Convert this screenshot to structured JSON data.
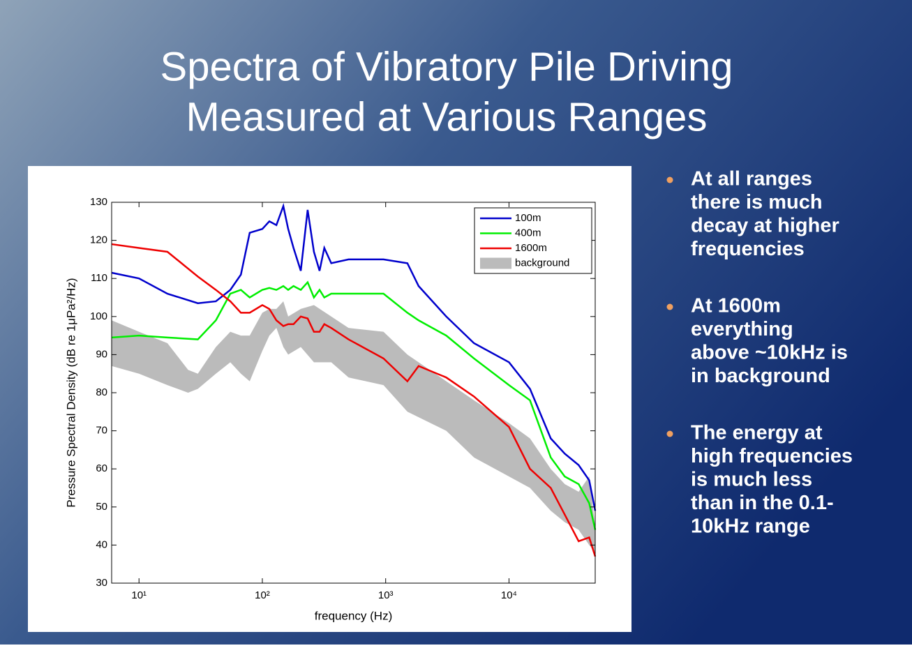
{
  "slide_title": [
    "Spectra of Vibratory Pile Driving",
    "Measured at Various Ranges"
  ],
  "bullets": [
    [
      "At all ranges",
      "there is much",
      "decay at higher",
      "frequencies"
    ],
    [
      "At 1600m",
      "everything",
      "above ~10kHz is",
      "in background"
    ],
    [
      "The energy at",
      "high frequencies",
      "is much less",
      "than in the 0.1-",
      "10kHz range"
    ]
  ],
  "chart_data": {
    "type": "line",
    "xlabel": "frequency (Hz)",
    "ylabel": "Pressure Spectral Density (dB re 1μPa²/Hz)",
    "log_x": true,
    "xlim": [
      6,
      50000
    ],
    "ylim": [
      30,
      130
    ],
    "xticks": [
      {
        "value": 10,
        "label": "10¹"
      },
      {
        "value": 100,
        "label": "10²"
      },
      {
        "value": 1000,
        "label": "10³"
      },
      {
        "value": 10000,
        "label": "10⁴"
      }
    ],
    "yticks": [
      30,
      40,
      50,
      60,
      70,
      80,
      90,
      100,
      110,
      120,
      130
    ],
    "legend": "upper right",
    "x": [
      6,
      10,
      17,
      30,
      42,
      55,
      67,
      79,
      100,
      114,
      130,
      148,
      162,
      179,
      205,
      233,
      262,
      291,
      318,
      362,
      500,
      960,
      1500,
      1850,
      3100,
      5200,
      10000,
      14800,
      21800,
      28300,
      36700,
      44700,
      50000
    ],
    "series": [
      {
        "name": "100m",
        "color": "#0000cc",
        "values": [
          111.5,
          110,
          106,
          103.5,
          104,
          107,
          111,
          122,
          123,
          125,
          124,
          129,
          123,
          118,
          112,
          128,
          117,
          112,
          118,
          114,
          115,
          115,
          114,
          108,
          100,
          93,
          88,
          81,
          68,
          64,
          61,
          57,
          49
        ]
      },
      {
        "name": "400m",
        "color": "#00ee00",
        "values": [
          94.5,
          95,
          94.5,
          94,
          99,
          106,
          107,
          105,
          107,
          107.5,
          107,
          108,
          107,
          108,
          107,
          109,
          105,
          107,
          105,
          106,
          106,
          106,
          101,
          99,
          95,
          89,
          82,
          78,
          63,
          58,
          56,
          51,
          44
        ]
      },
      {
        "name": "1600m",
        "color": "#ee0000",
        "values": [
          119,
          118,
          117,
          110.5,
          107,
          104,
          101,
          101,
          103,
          102,
          99,
          97.5,
          98,
          98,
          100,
          99.5,
          96,
          96,
          98,
          97,
          94,
          89,
          83,
          87,
          84,
          79,
          71,
          60,
          55,
          48,
          41,
          42,
          37
        ]
      }
    ],
    "band": {
      "name": "background",
      "color": "#bbbbbb",
      "x": [
        6,
        10,
        17,
        25,
        30,
        42,
        55,
        67,
        79,
        100,
        114,
        130,
        148,
        162,
        205,
        262,
        362,
        500,
        960,
        1500,
        3100,
        5200,
        10000,
        14800,
        21800,
        28300,
        36700,
        44700,
        50000
      ],
      "lower": [
        87,
        85,
        82,
        80,
        81,
        85,
        88,
        85,
        83,
        91,
        95,
        97,
        92,
        90,
        92,
        88,
        88,
        84,
        82,
        75,
        70,
        63,
        58,
        55,
        49,
        46,
        44,
        40,
        38
      ],
      "upper": [
        99,
        96,
        93,
        86,
        85,
        92,
        96,
        95,
        95,
        101,
        102,
        102,
        104,
        100,
        102,
        103,
        100,
        97,
        96,
        90,
        83,
        78,
        72,
        68,
        60,
        56,
        54,
        58,
        45
      ]
    }
  }
}
